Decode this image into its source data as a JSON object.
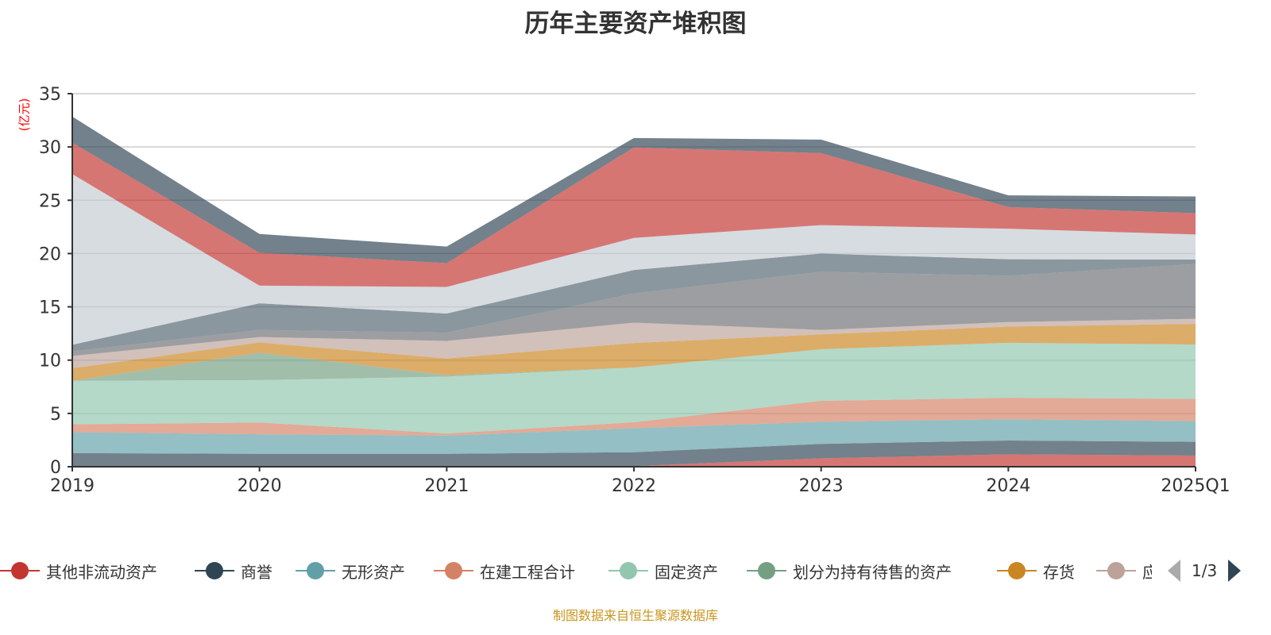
{
  "chart_data": {
    "type": "area",
    "stacked": true,
    "title": "历年主要资产堆积图",
    "ylabel": "(亿元)",
    "xlabel": "",
    "ylim": [
      0,
      35
    ],
    "yticks": [
      0,
      5,
      10,
      15,
      20,
      25,
      30,
      35
    ],
    "grid": true,
    "legend_position": "bottom",
    "categories": [
      "2019",
      "2020",
      "2021",
      "2022",
      "2023",
      "2024",
      "2025Q1"
    ],
    "series": [
      {
        "name": "其他非流动资产",
        "color": "#c23531",
        "values": [
          0,
          0,
          0,
          0.06,
          0.79,
          1.16,
          1.04
        ]
      },
      {
        "name": "商誉",
        "color": "#2f4554",
        "values": [
          1.28,
          1.21,
          1.21,
          1.3,
          1.35,
          1.3,
          1.3
        ]
      },
      {
        "name": "无形资产",
        "color": "#61a0a8",
        "values": [
          1.96,
          1.83,
          1.71,
          2.25,
          2.08,
          2.0,
          1.93
        ]
      },
      {
        "name": "在建工程合计",
        "color": "#d48265",
        "values": [
          0.74,
          1.11,
          0.2,
          0.56,
          1.96,
          2.01,
          2.1
        ]
      },
      {
        "name": "固定资产",
        "color": "#91c7ae",
        "values": [
          4.08,
          3.98,
          5.33,
          5.14,
          4.84,
          5.16,
          5.09
        ]
      },
      {
        "name": "划分为持有待售的资产",
        "color": "#749f83",
        "values": [
          0,
          2.57,
          0.13,
          0,
          0,
          0,
          0
        ]
      },
      {
        "name": "存货",
        "color": "#ca8622",
        "values": [
          1.18,
          0.96,
          1.58,
          2.3,
          1.4,
          1.52,
          1.94
        ]
      },
      {
        "name": "应收账款",
        "color": "#bda29a",
        "values": [
          1.15,
          0.51,
          1.64,
          1.91,
          0.41,
          0.42,
          0.48
        ]
      },
      {
        "name": "",
        "color": "#6e7074",
        "values": [
          0.44,
          0.66,
          0.78,
          2.74,
          5.46,
          4.35,
          5.14
        ]
      },
      {
        "name": "",
        "color": "#546570",
        "values": [
          0.61,
          2.5,
          1.79,
          2.2,
          1.71,
          1.54,
          0.42
        ]
      },
      {
        "name": "",
        "color": "#c4ccd3",
        "values": [
          16.02,
          1.66,
          2.5,
          3.01,
          2.67,
          2.87,
          2.35
        ]
      },
      {
        "name": "",
        "color": "#c23531",
        "values": [
          2.94,
          3.08,
          2.23,
          8.49,
          6.75,
          2.03,
          2.0
        ]
      },
      {
        "name": "",
        "color": "#2f4554",
        "values": [
          2.45,
          1.77,
          1.56,
          0.88,
          1.27,
          1.1,
          1.57
        ]
      }
    ]
  },
  "legend": {
    "visible_count": 8,
    "page": "1/3"
  },
  "footer": "制图数据来自恒生聚源数据库"
}
